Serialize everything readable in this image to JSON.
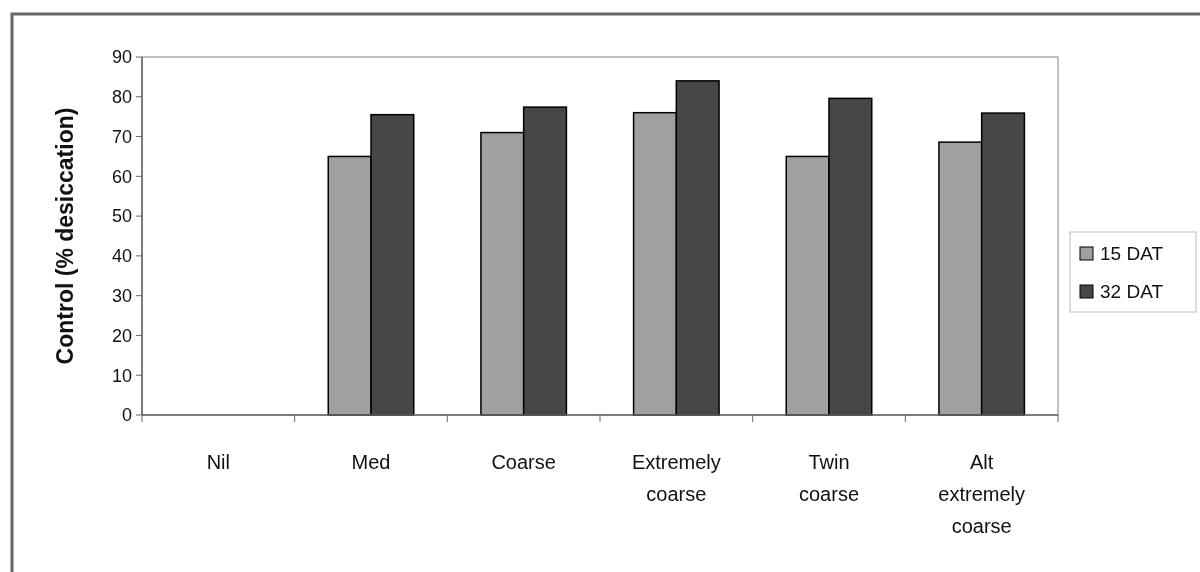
{
  "chart_data": {
    "type": "bar",
    "ylabel": "Control (% desiccation)",
    "categories": [
      "Nil",
      "Med",
      "Coarse",
      "Extremely coarse",
      "Twin coarse",
      "Alt extremely coarse"
    ],
    "series": [
      {
        "name": "15 DAT",
        "color": "#a0a0a0",
        "values": [
          0,
          65,
          71,
          76,
          65,
          68.6
        ]
      },
      {
        "name": "32 DAT",
        "color": "#474747",
        "values": [
          0,
          75.5,
          77.4,
          84,
          79.6,
          75.9
        ]
      }
    ],
    "ylim": [
      0,
      90
    ],
    "yticks": [
      0,
      10,
      20,
      30,
      40,
      50,
      60,
      70,
      80,
      90
    ],
    "grid": false,
    "legend": "right"
  }
}
